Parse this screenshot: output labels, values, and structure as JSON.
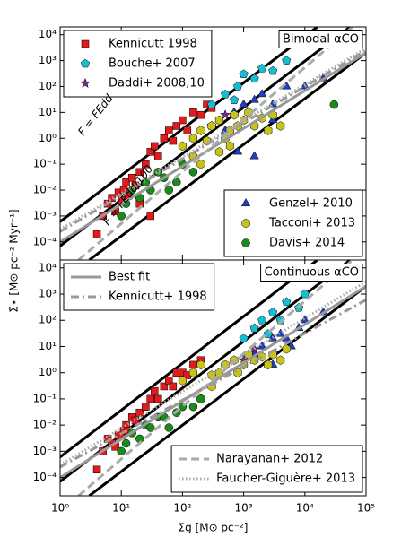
{
  "chart_data": [
    {
      "type": "scatter",
      "panel_label": "Bimodal αCO",
      "ylabel": "Σ̇⋆ [M⊙ pc⁻² Myr⁻¹]",
      "annotations": [
        "F = FEdd",
        "F = FEdd/100"
      ],
      "log_x": true,
      "log_y": true,
      "xlim": [
        1,
        100000
      ],
      "xticks": [
        1,
        10,
        100,
        1000,
        10000,
        100000
      ],
      "ylim": [
        2e-05,
        20000
      ],
      "yticks": [
        {
          "value": 0.0001,
          "label": "10⁻⁴"
        },
        {
          "value": 0.001,
          "label": "10⁻³"
        },
        {
          "value": 0.01,
          "label": "10⁻²"
        },
        {
          "value": 0.1,
          "label": "10⁻¹"
        },
        {
          "value": 1,
          "label": "10⁰"
        },
        {
          "value": 10,
          "label": "10¹"
        },
        {
          "value": 100,
          "label": "10²"
        },
        {
          "value": 1000,
          "label": "10³"
        },
        {
          "value": 10000,
          "label": "10⁴"
        }
      ],
      "series": [
        {
          "color": "#000000",
          "style": "solid",
          "width": 3,
          "x": [
            1,
            16000
          ],
          "y": [
            0.0006,
            20000
          ]
        },
        {
          "color": "#000000",
          "style": "solid",
          "width": 3,
          "x": [
            1,
            55000
          ],
          "y": [
            7e-05,
            20000
          ]
        },
        {
          "color": "#000000",
          "style": "solid",
          "width": 3,
          "x": [
            3,
            100000
          ],
          "y": [
            2e-05,
            2000
          ]
        },
        {
          "name": "Kennicutt 1998",
          "legend": "upper left",
          "marker": "square",
          "color": "#e31a1c",
          "x": [
            4,
            5,
            6,
            7,
            8,
            9,
            10,
            11,
            12,
            13,
            15,
            17,
            20,
            25,
            30,
            35,
            40,
            50,
            60,
            70,
            80,
            100,
            120,
            150,
            200,
            250,
            300,
            30,
            20
          ],
          "y": [
            0.0002,
            0.001,
            0.003,
            0.005,
            0.0015,
            0.008,
            0.004,
            0.01,
            0.02,
            0.006,
            0.03,
            0.015,
            0.05,
            0.1,
            0.3,
            0.5,
            0.2,
            1,
            2,
            0.8,
            3,
            5,
            2,
            10,
            8,
            20,
            15,
            0.001,
            0.003
          ]
        },
        {
          "name": "Bouche+ 2007",
          "legend": "upper left",
          "marker": "pentagon",
          "color": "#17becf",
          "x": [
            300,
            500,
            800,
            1000,
            1500,
            2000,
            3000,
            5000,
            700
          ],
          "y": [
            20,
            50,
            100,
            300,
            200,
            500,
            400,
            1000,
            30
          ]
        },
        {
          "name": "Daddi+ 2008,10",
          "legend": "upper left",
          "marker": "star",
          "color": "#7b2d8e",
          "x": [
            300,
            500
          ],
          "y": [
            3,
            8
          ]
        },
        {
          "name": "Genzel+ 2010",
          "legend": "lower right",
          "marker": "triangle",
          "color": "#1f3fbf",
          "x": [
            700,
            1000,
            1500,
            2000,
            3000,
            5000,
            10000,
            20000,
            800,
            1500,
            3000,
            500
          ],
          "y": [
            10,
            20,
            30,
            50,
            20,
            100,
            100,
            200,
            0.3,
            0.2,
            5,
            2
          ]
        },
        {
          "name": "Tacconi+ 2013",
          "legend": "lower right",
          "marker": "hexagon",
          "color": "#c8c21a",
          "x": [
            100,
            150,
            200,
            250,
            300,
            400,
            500,
            600,
            700,
            800,
            1000,
            1200,
            1500,
            2000,
            2500,
            3000,
            4000,
            150,
            200,
            400,
            600
          ],
          "y": [
            0.5,
            1,
            2,
            0.8,
            3,
            5,
            1,
            2,
            8,
            3,
            5,
            10,
            3,
            6,
            2,
            8,
            3,
            0.2,
            0.1,
            0.3,
            0.5
          ]
        },
        {
          "name": "Davis+ 2014",
          "legend": "lower right",
          "marker": "circle",
          "color": "#1a8a1a",
          "x": [
            10,
            12,
            15,
            20,
            25,
            30,
            40,
            50,
            60,
            80,
            100,
            150,
            30000
          ],
          "y": [
            0.001,
            0.003,
            0.01,
            0.005,
            0.02,
            0.01,
            0.05,
            0.03,
            0.01,
            0.02,
            0.1,
            0.05,
            20
          ]
        },
        {
          "color": "#999999",
          "style": "solid",
          "width": 3,
          "x": [
            1,
            100000
          ],
          "y": [
            0.0001,
            2000
          ]
        },
        {
          "color": "#999999",
          "style": "dashdot",
          "width": 3,
          "x": [
            1,
            100000
          ],
          "y": [
            0.00025,
            2500
          ]
        },
        {
          "color": "#aaaaaa",
          "style": "dashed",
          "width": 3,
          "x": [
            2,
            60000
          ],
          "y": [
            2e-05,
            20000
          ]
        },
        {
          "color": "#aaaaaa",
          "style": "dotted",
          "width": 3,
          "x": [
            1,
            100000
          ],
          "y": [
            0.0003,
            3000
          ]
        }
      ]
    },
    {
      "type": "scatter",
      "panel_label": "Continuous αCO",
      "xlabel": "Σg [M⊙ pc⁻²]",
      "log_x": true,
      "log_y": true,
      "xlim": [
        1,
        100000
      ],
      "xticks": [
        {
          "value": 1,
          "label": "10⁰"
        },
        {
          "value": 10,
          "label": "10¹"
        },
        {
          "value": 100,
          "label": "10²"
        },
        {
          "value": 1000,
          "label": "10³"
        },
        {
          "value": 10000,
          "label": "10⁴"
        },
        {
          "value": 100000,
          "label": "10⁵"
        }
      ],
      "ylim": [
        2e-05,
        20000
      ],
      "yticks": [
        {
          "value": 0.0001,
          "label": "10⁻⁴"
        },
        {
          "value": 0.001,
          "label": "10⁻³"
        },
        {
          "value": 0.01,
          "label": "10⁻²"
        },
        {
          "value": 0.1,
          "label": "10⁻¹"
        },
        {
          "value": 1,
          "label": "10⁰"
        },
        {
          "value": 10,
          "label": "10¹"
        },
        {
          "value": 100,
          "label": "10²"
        },
        {
          "value": 1000,
          "label": "10³"
        },
        {
          "value": 10000,
          "label": "10⁴"
        }
      ],
      "series": [
        {
          "color": "#000000",
          "style": "solid",
          "width": 3,
          "x": [
            1,
            16000
          ],
          "y": [
            0.0006,
            20000
          ]
        },
        {
          "color": "#000000",
          "style": "solid",
          "width": 3,
          "x": [
            1,
            55000
          ],
          "y": [
            7e-05,
            20000
          ]
        },
        {
          "color": "#000000",
          "style": "solid",
          "width": 3,
          "x": [
            3,
            100000
          ],
          "y": [
            2e-05,
            2000
          ]
        },
        {
          "marker": "square",
          "color": "#e31a1c",
          "x": [
            4,
            5,
            6,
            7,
            8,
            9,
            10,
            11,
            12,
            13,
            15,
            17,
            20,
            25,
            30,
            35,
            40,
            50,
            60,
            70,
            80,
            100,
            120,
            150,
            200
          ],
          "y": [
            0.0002,
            0.001,
            0.003,
            0.002,
            0.0015,
            0.004,
            0.004,
            0.006,
            0.01,
            0.006,
            0.02,
            0.015,
            0.03,
            0.05,
            0.1,
            0.2,
            0.1,
            0.3,
            0.5,
            0.3,
            1,
            1,
            0.8,
            2,
            3
          ]
        },
        {
          "marker": "pentagon",
          "color": "#17becf",
          "x": [
            1000,
            1500,
            2000,
            3000,
            4000,
            5000,
            8000,
            10000,
            2500
          ],
          "y": [
            20,
            50,
            100,
            200,
            100,
            500,
            300,
            1000,
            30
          ]
        },
        {
          "marker": "star",
          "color": "#7b2d8e",
          "x": [
            1000,
            1500
          ],
          "y": [
            3,
            8
          ]
        },
        {
          "marker": "triangle",
          "color": "#1f3fbf",
          "x": [
            1500,
            2000,
            3000,
            4000,
            5000,
            8000,
            10000,
            20000,
            3000,
            6000
          ],
          "y": [
            5,
            10,
            20,
            30,
            20,
            50,
            100,
            200,
            2,
            10
          ]
        },
        {
          "marker": "hexagon",
          "color": "#c8c21a",
          "x": [
            100,
            150,
            200,
            300,
            400,
            500,
            700,
            800,
            1000,
            1200,
            1500,
            2000,
            2500,
            3000,
            4000,
            5000,
            200,
            300
          ],
          "y": [
            0.5,
            1,
            2,
            0.8,
            1,
            2,
            3,
            1,
            2,
            5,
            3,
            4,
            2,
            5,
            3,
            8,
            0.1,
            0.3
          ]
        },
        {
          "marker": "circle",
          "color": "#1a8a1a",
          "x": [
            10,
            12,
            15,
            20,
            25,
            30,
            40,
            50,
            60,
            80,
            100,
            150,
            200
          ],
          "y": [
            0.001,
            0.002,
            0.005,
            0.003,
            0.01,
            0.008,
            0.02,
            0.02,
            0.008,
            0.03,
            0.05,
            0.05,
            0.1
          ]
        },
        {
          "name": "Best fit",
          "legend": "upper left",
          "color": "#999999",
          "style": "solid",
          "width": 3,
          "x": [
            1,
            100000
          ],
          "y": [
            0.0001,
            2000
          ]
        },
        {
          "name": "Kennicutt+ 1998",
          "legend": "upper left",
          "color": "#999999",
          "style": "dashdot",
          "width": 3,
          "x": [
            1,
            100000
          ],
          "y": [
            0.00025,
            600
          ]
        },
        {
          "name": "Narayanan+ 2012",
          "legend": "lower right",
          "color": "#aaaaaa",
          "style": "dashed",
          "width": 3,
          "x": [
            2,
            60000
          ],
          "y": [
            2e-05,
            20000
          ]
        },
        {
          "name": "Faucher-Giguère+ 2013",
          "legend": "lower right",
          "color": "#aaaaaa",
          "style": "dotted",
          "width": 3,
          "x": [
            1,
            100000
          ],
          "y": [
            0.0003,
            3000
          ]
        }
      ]
    }
  ]
}
